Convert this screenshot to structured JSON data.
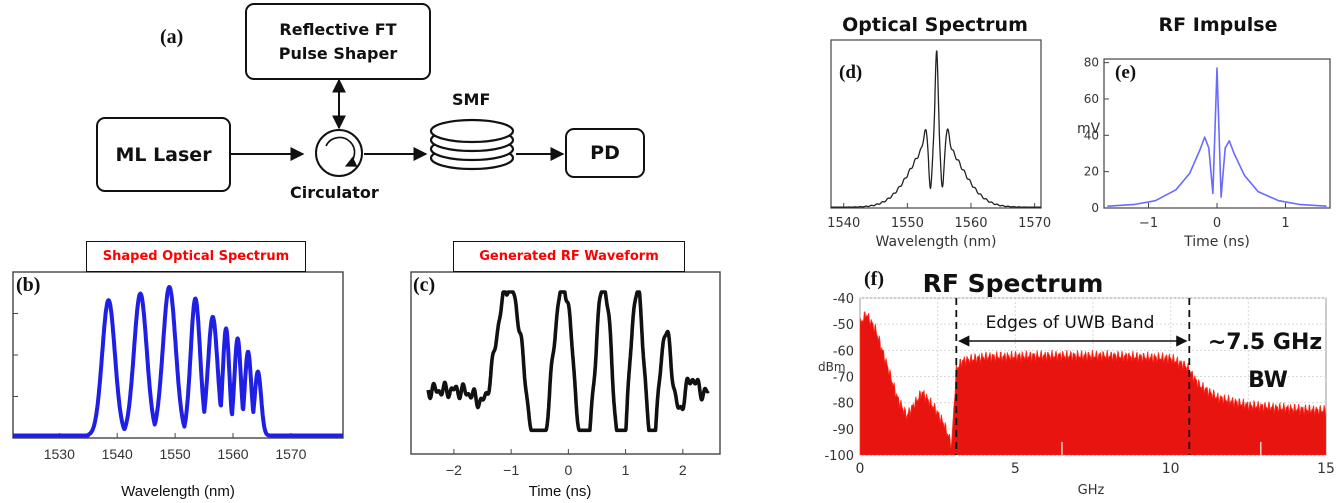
{
  "setup": {
    "panel_label": "(a)",
    "ml_laser": "ML Laser",
    "pulse_shaper_line1": "Reflective FT",
    "pulse_shaper_line2": "Pulse Shaper",
    "circulator": "Circulator",
    "smf": "SMF",
    "pd": "PD"
  },
  "panels": {
    "b": {
      "label": "(b)",
      "title": "Shaped Optical Spectrum",
      "xlabel": "Wavelength (nm)"
    },
    "c": {
      "label": "(c)",
      "title": "Generated RF Waveform",
      "xlabel": "Time (ns)"
    },
    "d": {
      "label": "(d)",
      "title": "Optical Spectrum",
      "xlabel": "Wavelength (nm)"
    },
    "e": {
      "label": "(e)",
      "title": "RF Impulse",
      "xlabel": "Time (ns)",
      "ylabel": "mV"
    },
    "f": {
      "label": "(f)",
      "title": "RF Spectrum",
      "xlabel": "GHz",
      "ylabel": "dBm",
      "annotation": "Edges of UWB Band",
      "bw_line1": "~7.5 GHz",
      "bw_line2": "BW"
    }
  },
  "colors": {
    "title_red": "#ff0000",
    "blue": "#1f1fe6",
    "light_blue": "#6a6aff",
    "red_fill": "#e8140f"
  },
  "chart_data": [
    {
      "id": "b",
      "type": "line",
      "xlim": [
        1522,
        1579
      ],
      "ylim": [
        0,
        1
      ],
      "grid": false,
      "xticks": [
        1530,
        1540,
        1550,
        1560,
        1570
      ],
      "peaks": [
        {
          "x": 1538.5,
          "y": 0.83
        },
        {
          "x": 1544.0,
          "y": 0.87
        },
        {
          "x": 1549.0,
          "y": 0.91
        },
        {
          "x": 1553.5,
          "y": 0.84
        },
        {
          "x": 1556.5,
          "y": 0.73
        },
        {
          "x": 1558.8,
          "y": 0.66
        },
        {
          "x": 1560.8,
          "y": 0.6
        },
        {
          "x": 1562.6,
          "y": 0.52
        },
        {
          "x": 1564.3,
          "y": 0.4
        }
      ]
    },
    {
      "id": "c",
      "type": "line",
      "xlim": [
        -2.75,
        2.65
      ],
      "ylim": [
        -1,
        1
      ],
      "grid": false,
      "xticks": [
        -2,
        -1,
        0,
        1,
        2
      ]
    },
    {
      "id": "d",
      "type": "line",
      "xlim": [
        1538,
        1571
      ],
      "ylim": [
        0,
        1
      ],
      "grid": false,
      "xticks": [
        1540,
        1550,
        1560,
        1570
      ]
    },
    {
      "id": "e",
      "type": "line",
      "xlim": [
        -1.65,
        1.65
      ],
      "ylim": [
        0,
        82
      ],
      "grid": false,
      "xticks": [
        -1,
        0,
        1
      ],
      "yticks": [
        0,
        20,
        40,
        60,
        80
      ],
      "x": [
        -1.6,
        -1.2,
        -0.9,
        -0.6,
        -0.4,
        -0.25,
        -0.18,
        -0.12,
        -0.06,
        0,
        0.06,
        0.12,
        0.18,
        0.25,
        0.4,
        0.6,
        0.9,
        1.2,
        1.6
      ],
      "y": [
        1,
        2,
        4,
        10,
        19,
        32,
        39,
        33,
        8,
        77,
        6,
        33,
        37,
        30,
        18,
        9,
        4,
        2,
        1
      ]
    },
    {
      "id": "f",
      "type": "area",
      "xlim": [
        0,
        15
      ],
      "ylim": [
        -100,
        -40
      ],
      "grid": true,
      "xticks": [
        0,
        5,
        10,
        15
      ],
      "yticks": [
        -40,
        -50,
        -60,
        -70,
        -80,
        -90,
        -100
      ],
      "band_edges": [
        3.1,
        10.6
      ],
      "x": [
        0,
        0.2,
        0.5,
        0.8,
        1.2,
        1.5,
        2.0,
        2.4,
        2.7,
        2.95,
        3.1,
        3.3,
        4,
        6,
        8,
        10,
        10.5,
        10.9,
        11.5,
        12.5,
        13.5,
        15
      ],
      "y": [
        -50,
        -46,
        -52,
        -63,
        -78,
        -85,
        -76,
        -82,
        -88,
        -96,
        -67,
        -64,
        -62.5,
        -62,
        -62,
        -63,
        -66,
        -73,
        -78,
        -81,
        -82,
        -83
      ]
    }
  ]
}
